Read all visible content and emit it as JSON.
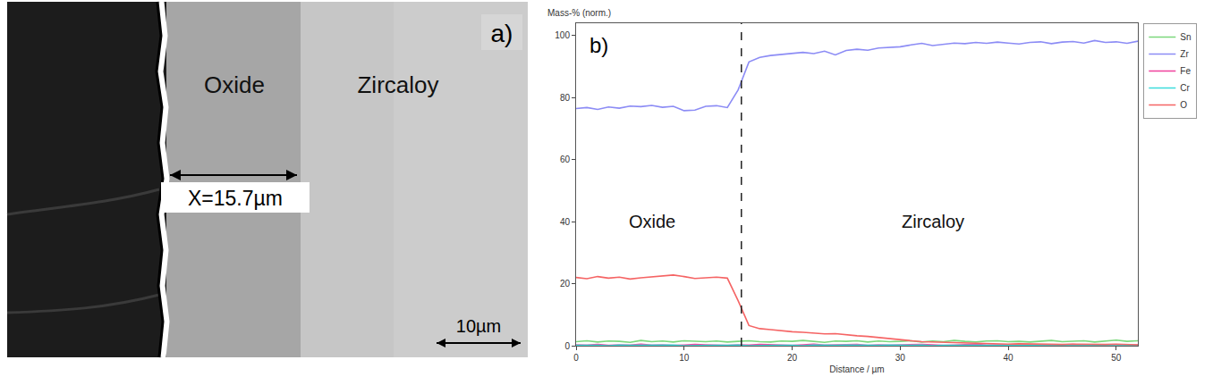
{
  "micrograph": {
    "label": "a)",
    "regions": [
      "Oxide",
      "Zircaloy"
    ],
    "measurement": "X=15.7µm",
    "scale_bar": "10µm"
  },
  "chart_data": {
    "type": "line",
    "label": "b)",
    "y_label": "Mass-% (norm.)",
    "x_label": "Distance / µm",
    "x": [
      0,
      1,
      2,
      3,
      4,
      5,
      6,
      7,
      8,
      9,
      10,
      11,
      12,
      13,
      14,
      15,
      16,
      17,
      18,
      19,
      20,
      21,
      22,
      23,
      24,
      25,
      26,
      27,
      28,
      29,
      30,
      31,
      32,
      33,
      34,
      35,
      36,
      37,
      38,
      39,
      40,
      41,
      42,
      43,
      44,
      45,
      46,
      47,
      48,
      49,
      50,
      51,
      52
    ],
    "series": [
      {
        "name": "Sn",
        "color": "#7bd87b",
        "values": [
          1.3,
          1.6,
          1.2,
          1.5,
          1.4,
          1.1,
          1.7,
          1.3,
          1.5,
          1.2,
          1.6,
          1.4,
          1.3,
          1.5,
          1.2,
          1.4,
          1.6,
          1.3,
          1.2,
          1.5,
          1.4,
          1.7,
          1.3,
          1.1,
          1.5,
          1.4,
          1.6,
          1.2,
          1.5,
          1.3,
          1.4,
          1.6,
          1.2,
          1.5,
          1.3,
          1.7,
          1.4,
          1.2,
          1.5,
          1.6,
          1.3,
          1.4,
          1.2,
          1.5,
          1.7,
          1.3,
          1.4,
          1.6,
          1.2,
          1.5,
          1.8,
          1.4,
          1.6
        ]
      },
      {
        "name": "Zr",
        "color": "#8c8cf5",
        "values": [
          76.5,
          76.8,
          76.2,
          77.0,
          76.6,
          77.3,
          77.1,
          77.5,
          76.9,
          77.2,
          75.8,
          76.0,
          77.2,
          77.4,
          76.8,
          82.5,
          91.5,
          93.0,
          93.6,
          94.0,
          94.3,
          94.6,
          94.2,
          95.0,
          93.8,
          95.2,
          95.6,
          95.3,
          96.0,
          96.2,
          96.4,
          97.0,
          97.5,
          96.8,
          97.2,
          97.6,
          97.4,
          97.8,
          97.5,
          97.9,
          97.6,
          97.3,
          97.8,
          98.0,
          97.4,
          97.9,
          98.1,
          97.6,
          98.4,
          97.8,
          98.0,
          97.5,
          98.2
        ]
      },
      {
        "name": "Fe",
        "color": "#f0409c",
        "values": [
          0.3,
          0.2,
          0.4,
          0.1,
          0.3,
          0.2,
          0.5,
          0.2,
          0.3,
          0.1,
          0.2,
          0.4,
          0.3,
          0.2,
          0.1,
          0.3,
          0.2,
          0.4,
          0.3,
          0.2,
          0.1,
          0.3,
          0.5,
          0.2,
          0.3,
          0.2,
          0.4,
          0.1,
          0.3,
          0.2,
          0.3,
          0.2,
          0.4,
          0.3,
          0.1,
          0.2,
          0.3,
          0.5,
          0.2,
          0.3,
          0.2,
          0.4,
          0.1,
          0.3,
          0.2,
          0.3,
          0.4,
          0.2,
          0.1,
          0.3,
          0.2,
          0.3,
          0.2
        ]
      },
      {
        "name": "Cr",
        "color": "#3cdcdc",
        "values": [
          0.1,
          0.2,
          0.1,
          0.0,
          0.2,
          0.1,
          0.1,
          0.3,
          0.1,
          0.2,
          0.0,
          0.1,
          0.2,
          0.1,
          0.1,
          0.2,
          0.0,
          0.1,
          0.2,
          0.1,
          0.1,
          0.0,
          0.2,
          0.1,
          0.1,
          0.2,
          0.1,
          0.0,
          0.1,
          0.2,
          0.1,
          0.1,
          0.2,
          0.0,
          0.1,
          0.1,
          0.2,
          0.1,
          0.0,
          0.1,
          0.2,
          0.1,
          0.1,
          0.0,
          0.2,
          0.1,
          0.1,
          0.2,
          0.1,
          0.0,
          0.1,
          0.2,
          0.1
        ]
      },
      {
        "name": "O",
        "color": "#f56464",
        "values": [
          22.0,
          21.6,
          22.3,
          21.8,
          22.1,
          21.5,
          21.9,
          22.2,
          22.5,
          22.8,
          22.3,
          21.7,
          21.9,
          22.1,
          21.8,
          14.5,
          6.5,
          5.5,
          5.2,
          4.8,
          4.5,
          4.3,
          4.0,
          3.8,
          3.9,
          3.5,
          3.2,
          3.0,
          2.6,
          2.4,
          2.0,
          1.6,
          1.3,
          1.2,
          1.0,
          0.9,
          0.8,
          0.7,
          0.8,
          0.6,
          0.5,
          0.6,
          0.5,
          0.4,
          0.5,
          0.4,
          0.5,
          0.4,
          0.3,
          0.4,
          0.5,
          0.4,
          0.3
        ]
      }
    ],
    "xlim": [
      0,
      52
    ],
    "ylim": [
      0,
      104
    ],
    "xticks": [
      0,
      10,
      20,
      30,
      40,
      50
    ],
    "yticks": [
      0,
      20,
      40,
      60,
      80,
      100
    ],
    "grid": false,
    "legend": "right",
    "annotations": [
      {
        "text": "Oxide",
        "x": 7,
        "y": 40
      },
      {
        "text": "Zircaloy",
        "x": 33,
        "y": 40
      }
    ],
    "interface_x": 15.3
  }
}
